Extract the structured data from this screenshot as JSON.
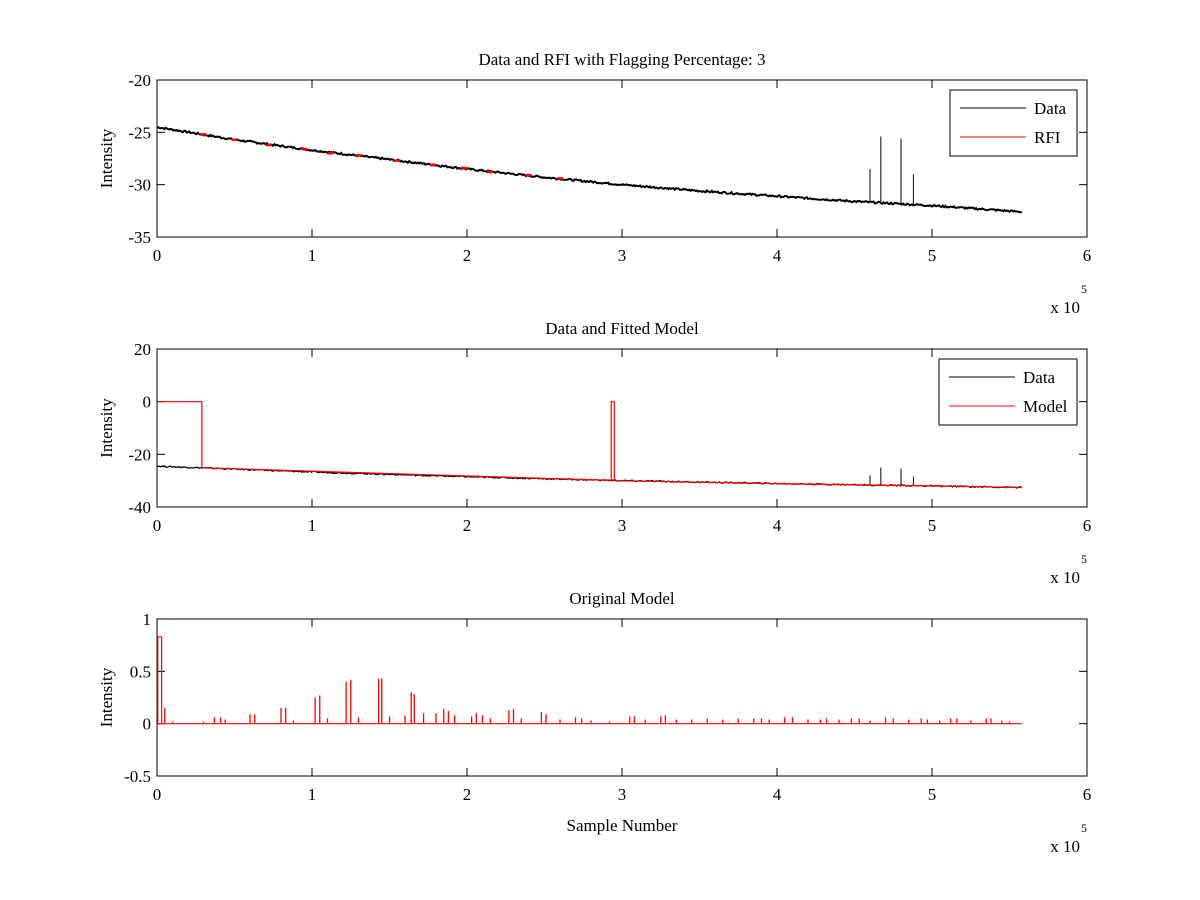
{
  "chart_data": [
    {
      "type": "line",
      "title": "Data and RFI with Flagging Percentage: 3",
      "xlabel": "",
      "ylabel": "Intensity",
      "xlim": [
        0,
        6
      ],
      "ylim": [
        -35,
        -20
      ],
      "xticks": [
        "0",
        "1",
        "2",
        "3",
        "4",
        "5",
        "6"
      ],
      "yticks": [
        "-20",
        "-25",
        "-30",
        "-35"
      ],
      "x_exponent": {
        "base": "x 10",
        "power": "5"
      },
      "legend_position": "top-right",
      "series": [
        {
          "name": "Data",
          "color": "#000000",
          "trend": [
            [
              0,
              -24.5
            ],
            [
              0.5,
              -25.7
            ],
            [
              1,
              -26.7
            ],
            [
              1.5,
              -27.6
            ],
            [
              2,
              -28.5
            ],
            [
              2.5,
              -29.3
            ],
            [
              3,
              -30.0
            ],
            [
              3.5,
              -30.6
            ],
            [
              4,
              -31.1
            ],
            [
              4.5,
              -31.6
            ],
            [
              5,
              -32.0
            ],
            [
              5.58,
              -32.6
            ]
          ],
          "spikes": [
            [
              4.6,
              -28.5
            ],
            [
              4.67,
              -25.4
            ],
            [
              4.8,
              -25.6
            ],
            [
              4.88,
              -29.0
            ]
          ]
        },
        {
          "name": "RFI",
          "color": "#ff0000",
          "points": [
            [
              0.3,
              -25.2
            ],
            [
              0.5,
              -25.7
            ],
            [
              0.72,
              -26.2
            ],
            [
              0.95,
              -26.6
            ],
            [
              1.12,
              -27.0
            ],
            [
              1.3,
              -27.2
            ],
            [
              1.55,
              -27.7
            ],
            [
              1.78,
              -28.1
            ],
            [
              1.98,
              -28.4
            ],
            [
              2.15,
              -28.8
            ],
            [
              2.4,
              -29.1
            ],
            [
              2.6,
              -29.4
            ]
          ]
        }
      ]
    },
    {
      "type": "line",
      "title": "Data and Fitted Model",
      "xlabel": "",
      "ylabel": "Intensity",
      "xlim": [
        0,
        6
      ],
      "ylim": [
        -40,
        20
      ],
      "xticks": [
        "0",
        "1",
        "2",
        "3",
        "4",
        "5",
        "6"
      ],
      "yticks": [
        "20",
        "0",
        "-20",
        "-40"
      ],
      "x_exponent": {
        "base": "x 10",
        "power": "5"
      },
      "legend_position": "top-right",
      "series": [
        {
          "name": "Data",
          "color": "#000000",
          "trend": [
            [
              0,
              -24.5
            ],
            [
              1,
              -26.7
            ],
            [
              2,
              -28.5
            ],
            [
              3,
              -30.0
            ],
            [
              4,
              -31.1
            ],
            [
              5,
              -32.0
            ],
            [
              5.58,
              -32.6
            ]
          ],
          "spikes": [
            [
              4.6,
              -28.0
            ],
            [
              4.67,
              -25.0
            ],
            [
              4.8,
              -25.5
            ],
            [
              4.88,
              -28.5
            ]
          ]
        },
        {
          "name": "Model",
          "color": "#ff0000",
          "points": [
            [
              0,
              1
            ],
            [
              0.005,
              0
            ],
            [
              0.29,
              0
            ],
            [
              0.29,
              -25.1
            ],
            [
              2.93,
              -29.9
            ],
            [
              2.93,
              0
            ],
            [
              2.95,
              0
            ],
            [
              2.95,
              -30.0
            ],
            [
              3.5,
              -30.6
            ],
            [
              4,
              -31.1
            ],
            [
              4.5,
              -31.6
            ],
            [
              5,
              -32.0
            ],
            [
              5.58,
              -32.6
            ]
          ]
        }
      ]
    },
    {
      "type": "line",
      "title": "Original Model",
      "xlabel": "Sample Number",
      "ylabel": "Intensity",
      "xlim": [
        0,
        6
      ],
      "ylim": [
        -0.5,
        1
      ],
      "xticks": [
        "0",
        "1",
        "2",
        "3",
        "4",
        "5",
        "6"
      ],
      "yticks": [
        "1",
        "0.5",
        "0",
        "-0.5"
      ],
      "x_exponent": {
        "base": "x 10",
        "power": "5"
      },
      "series": [
        {
          "name": "Original Model",
          "color": "#ff0000",
          "baseline": 0,
          "x_end": 5.58,
          "step": [
            [
              0.01,
              0.83
            ],
            [
              0.03,
              0.83
            ]
          ],
          "spikes": [
            [
              0.05,
              0.15
            ],
            [
              0.1,
              0.02
            ],
            [
              0.3,
              0.02
            ],
            [
              0.37,
              0.06
            ],
            [
              0.41,
              0.06
            ],
            [
              0.44,
              0.04
            ],
            [
              0.6,
              0.09
            ],
            [
              0.63,
              0.09
            ],
            [
              0.8,
              0.15
            ],
            [
              0.83,
              0.15
            ],
            [
              0.88,
              0.03
            ],
            [
              1.02,
              0.25
            ],
            [
              1.05,
              0.27
            ],
            [
              1.1,
              0.05
            ],
            [
              1.22,
              0.4
            ],
            [
              1.25,
              0.42
            ],
            [
              1.3,
              0.06
            ],
            [
              1.43,
              0.43
            ],
            [
              1.45,
              0.43
            ],
            [
              1.5,
              0.07
            ],
            [
              1.6,
              0.08
            ],
            [
              1.64,
              0.3
            ],
            [
              1.66,
              0.28
            ],
            [
              1.72,
              0.1
            ],
            [
              1.8,
              0.1
            ],
            [
              1.85,
              0.14
            ],
            [
              1.88,
              0.12
            ],
            [
              1.92,
              0.08
            ],
            [
              2.03,
              0.07
            ],
            [
              2.06,
              0.1
            ],
            [
              2.1,
              0.08
            ],
            [
              2.15,
              0.05
            ],
            [
              2.27,
              0.13
            ],
            [
              2.3,
              0.14
            ],
            [
              2.35,
              0.05
            ],
            [
              2.48,
              0.11
            ],
            [
              2.51,
              0.09
            ],
            [
              2.6,
              0.04
            ],
            [
              2.7,
              0.06
            ],
            [
              2.74,
              0.05
            ],
            [
              2.8,
              0.03
            ],
            [
              2.92,
              0.02
            ],
            [
              3.05,
              0.07
            ],
            [
              3.08,
              0.07
            ],
            [
              3.15,
              0.04
            ],
            [
              3.25,
              0.07
            ],
            [
              3.28,
              0.08
            ],
            [
              3.35,
              0.04
            ],
            [
              3.45,
              0.04
            ],
            [
              3.55,
              0.05
            ],
            [
              3.65,
              0.04
            ],
            [
              3.75,
              0.05
            ],
            [
              3.85,
              0.05
            ],
            [
              3.9,
              0.05
            ],
            [
              3.95,
              0.04
            ],
            [
              4.05,
              0.06
            ],
            [
              4.1,
              0.06
            ],
            [
              4.2,
              0.04
            ],
            [
              4.28,
              0.04
            ],
            [
              4.32,
              0.05
            ],
            [
              4.4,
              0.04
            ],
            [
              4.48,
              0.05
            ],
            [
              4.53,
              0.05
            ],
            [
              4.6,
              0.03
            ],
            [
              4.7,
              0.06
            ],
            [
              4.75,
              0.05
            ],
            [
              4.85,
              0.04
            ],
            [
              4.93,
              0.05
            ],
            [
              4.97,
              0.04
            ],
            [
              5.05,
              0.03
            ],
            [
              5.12,
              0.05
            ],
            [
              5.16,
              0.05
            ],
            [
              5.25,
              0.03
            ],
            [
              5.35,
              0.05
            ],
            [
              5.38,
              0.05
            ],
            [
              5.45,
              0.03
            ],
            [
              5.5,
              0.02
            ]
          ]
        }
      ]
    }
  ]
}
